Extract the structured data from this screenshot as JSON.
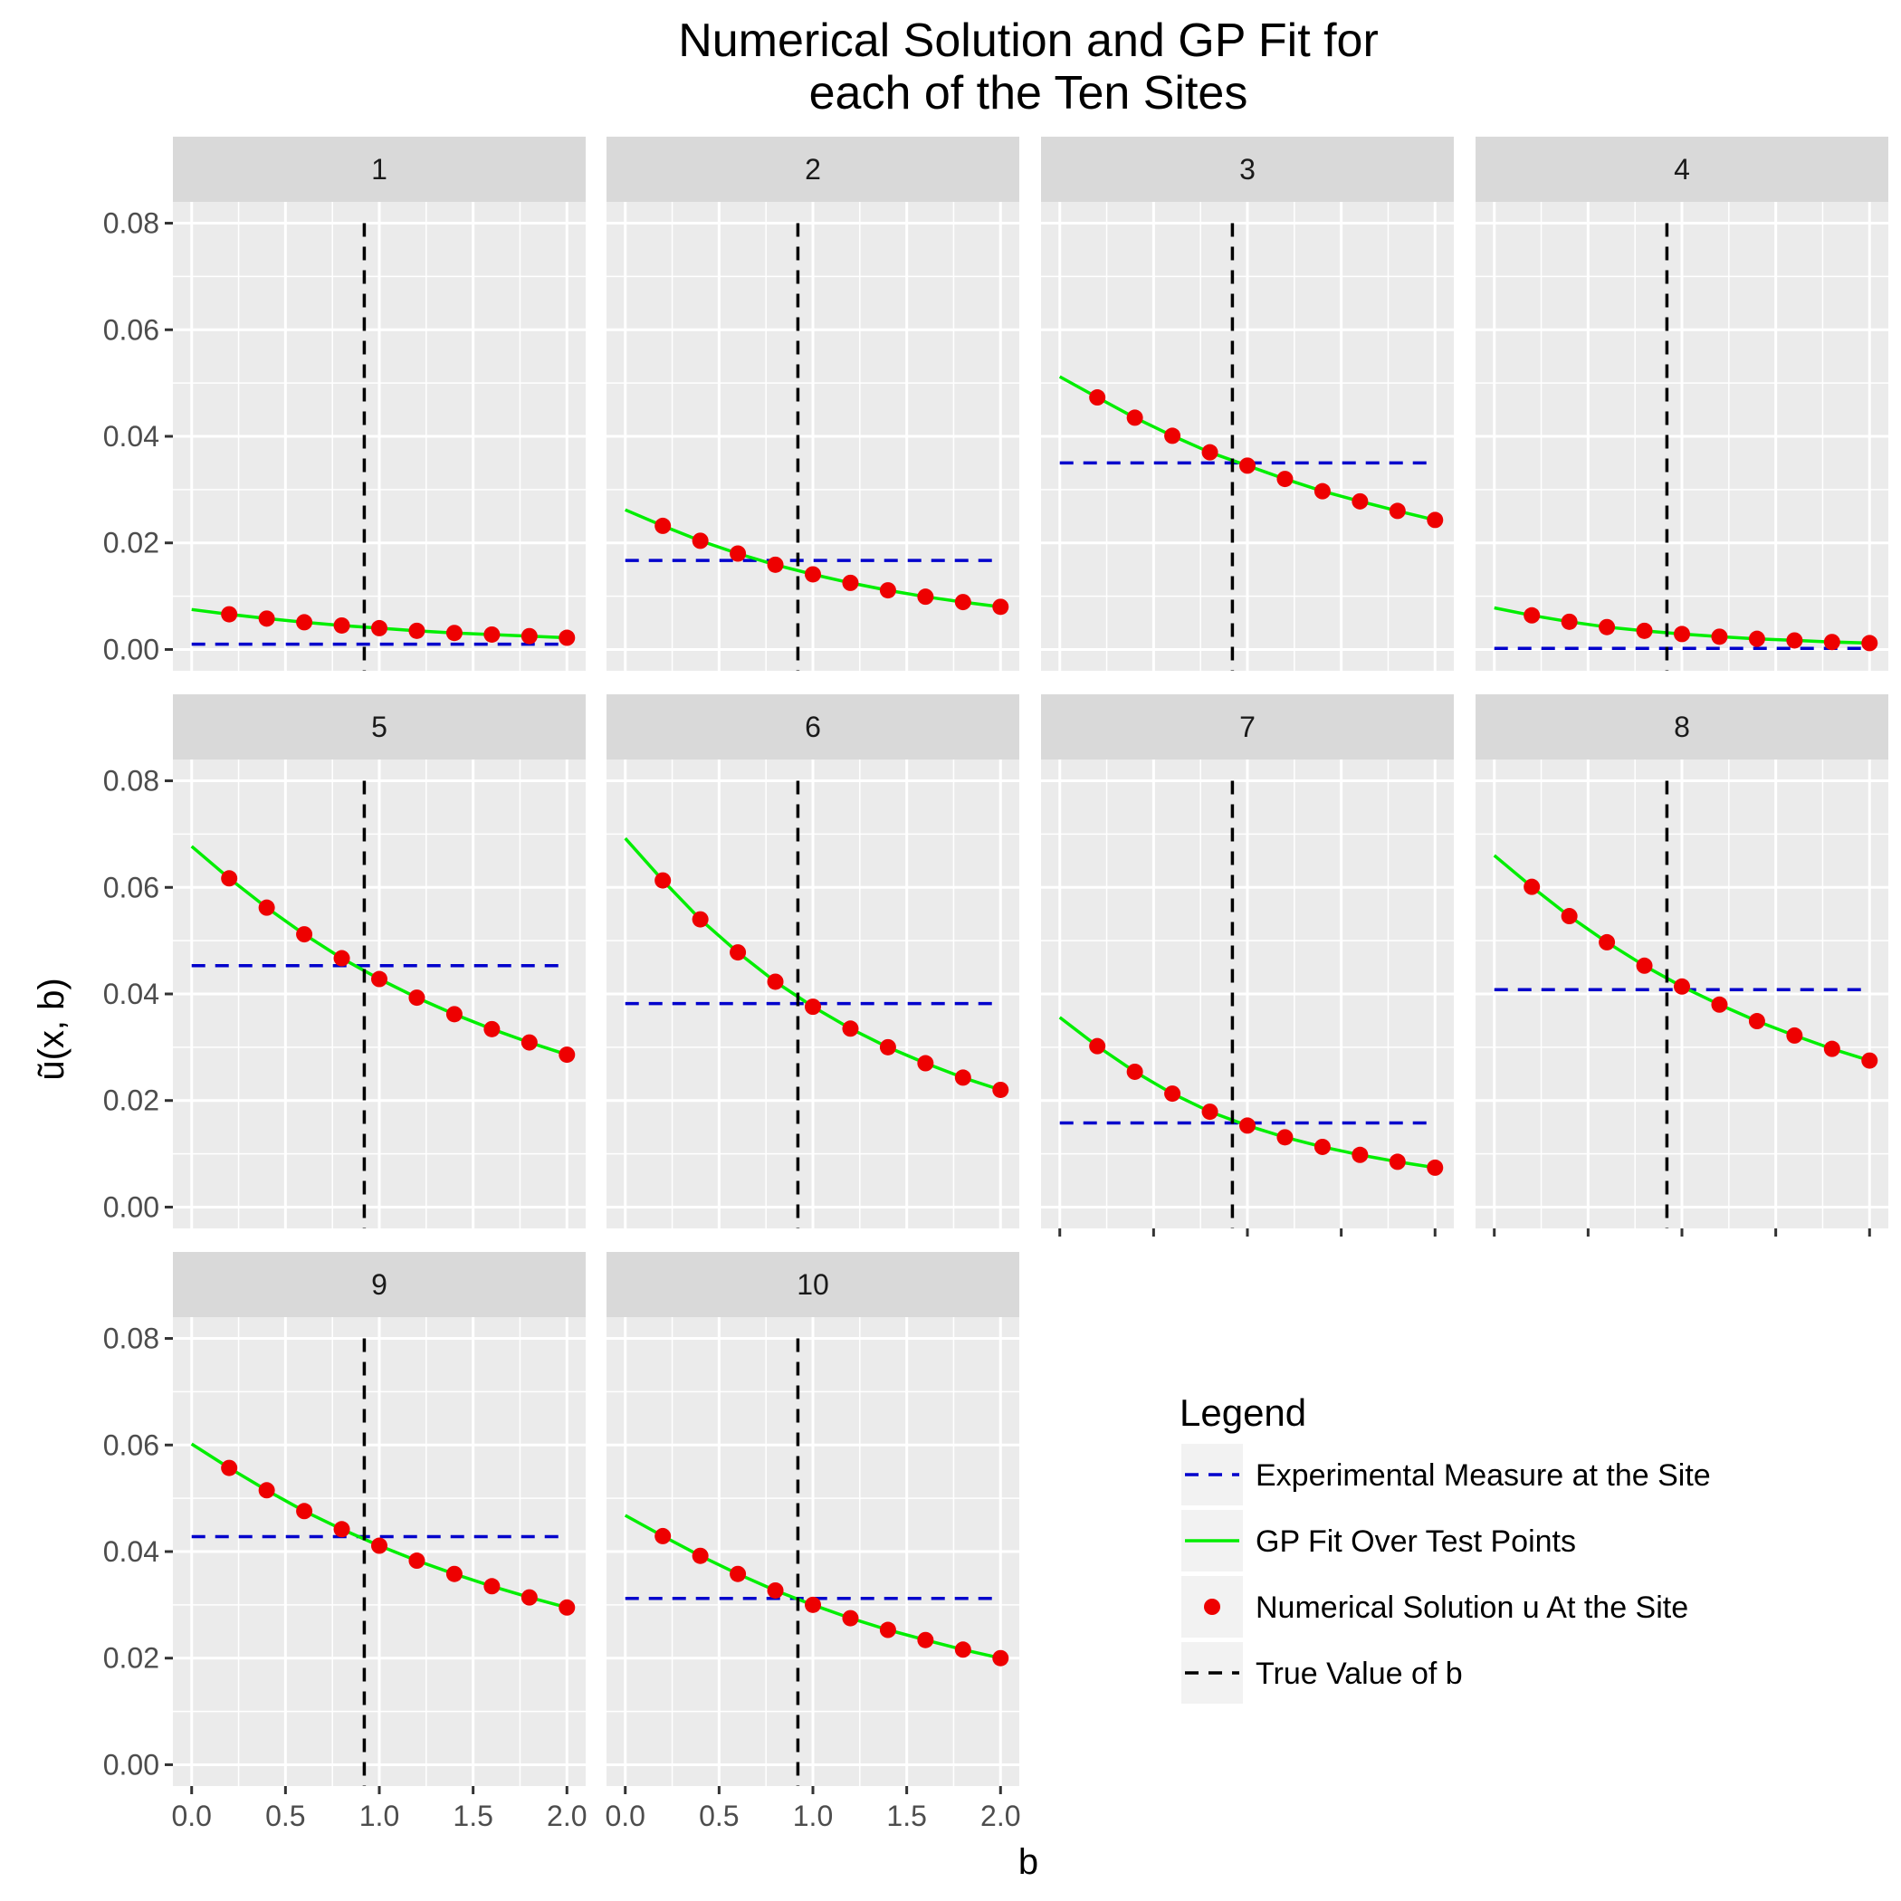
{
  "chart_data": {
    "type": "line",
    "title_lines": [
      "Numerical Solution and GP Fit for",
      "each of the Ten Sites"
    ],
    "xlabel": "b",
    "ylabel": "ũ(x, b)",
    "xlim": [
      -0.1,
      2.1
    ],
    "ylim": [
      -0.004,
      0.084
    ],
    "x_ticks": [
      "0.0",
      "0.5",
      "1.0",
      "1.5",
      "2.0"
    ],
    "x_tick_values": [
      0,
      0.5,
      1,
      1.5,
      2
    ],
    "y_ticks": [
      "0.00",
      "0.02",
      "0.04",
      "0.06",
      "0.08"
    ],
    "y_tick_values": [
      0,
      0.02,
      0.04,
      0.06,
      0.08
    ],
    "grid": true,
    "legend_placement": "bottom-right",
    "colors": {
      "experimental": "#0000cc",
      "gp_fit": "#00ee00",
      "numerical": "#ee0000",
      "true_b": "#000000"
    },
    "legend": {
      "title": "Legend",
      "entries": [
        {
          "key": "experimental",
          "label": "Experimental Measure at the Site"
        },
        {
          "key": "gp_fit",
          "label": "GP Fit Over Test Points"
        },
        {
          "key": "numerical",
          "label": "Numerical Solution u At the Site"
        },
        {
          "key": "true_b",
          "label": "True Value of b"
        }
      ]
    },
    "true_b": 0.92,
    "gp_x": [
      0,
      0.2,
      0.4,
      0.6,
      0.8,
      1.0,
      1.2,
      1.4,
      1.6,
      1.8,
      2.0
    ],
    "numerical_x": [
      0.2,
      0.4,
      0.6,
      0.8,
      1.0,
      1.2,
      1.4,
      1.6,
      1.8,
      2.0
    ],
    "panels": [
      {
        "label": "1",
        "experimental": 0.001,
        "gp_y": [
          0.0075,
          0.0066,
          0.0058,
          0.0051,
          0.0045,
          0.004,
          0.0035,
          0.0031,
          0.0028,
          0.0025,
          0.0022
        ],
        "numerical_y": [
          0.0066,
          0.0058,
          0.0051,
          0.0045,
          0.004,
          0.0035,
          0.0031,
          0.0028,
          0.0025,
          0.0022
        ]
      },
      {
        "label": "2",
        "experimental": 0.0167,
        "gp_y": [
          0.0262,
          0.0232,
          0.0204,
          0.018,
          0.0159,
          0.0141,
          0.0125,
          0.0111,
          0.0099,
          0.0089,
          0.008
        ],
        "numerical_y": [
          0.0232,
          0.0204,
          0.018,
          0.0159,
          0.0141,
          0.0125,
          0.0111,
          0.0099,
          0.0089,
          0.008
        ]
      },
      {
        "label": "3",
        "experimental": 0.035,
        "gp_y": [
          0.0512,
          0.0473,
          0.0435,
          0.0401,
          0.037,
          0.0345,
          0.032,
          0.0297,
          0.0278,
          0.026,
          0.0243
        ],
        "numerical_y": [
          0.0473,
          0.0435,
          0.0401,
          0.037,
          0.0345,
          0.032,
          0.0297,
          0.0278,
          0.026,
          0.0243
        ]
      },
      {
        "label": "4",
        "experimental": 0.0002,
        "gp_y": [
          0.0078,
          0.0064,
          0.0052,
          0.0042,
          0.0035,
          0.0029,
          0.0024,
          0.002,
          0.0017,
          0.0014,
          0.0012
        ],
        "numerical_y": [
          0.0064,
          0.0052,
          0.0042,
          0.0035,
          0.0029,
          0.0024,
          0.002,
          0.0017,
          0.0014,
          0.0012
        ]
      },
      {
        "label": "5",
        "experimental": 0.0453,
        "gp_y": [
          0.0677,
          0.0617,
          0.0562,
          0.0512,
          0.0467,
          0.0428,
          0.0393,
          0.0362,
          0.0334,
          0.0309,
          0.0286
        ],
        "numerical_y": [
          0.0617,
          0.0562,
          0.0512,
          0.0467,
          0.0428,
          0.0393,
          0.0362,
          0.0334,
          0.0309,
          0.0286
        ]
      },
      {
        "label": "6",
        "experimental": 0.0382,
        "gp_y": [
          0.0692,
          0.0613,
          0.054,
          0.0478,
          0.0423,
          0.0376,
          0.0335,
          0.03,
          0.027,
          0.0243,
          0.022
        ],
        "numerical_y": [
          0.0613,
          0.054,
          0.0478,
          0.0423,
          0.0376,
          0.0335,
          0.03,
          0.027,
          0.0243,
          0.022
        ]
      },
      {
        "label": "7",
        "experimental": 0.0158,
        "gp_y": [
          0.0356,
          0.0302,
          0.0254,
          0.0213,
          0.0179,
          0.0153,
          0.0131,
          0.0113,
          0.0098,
          0.0085,
          0.0074
        ],
        "numerical_y": [
          0.0302,
          0.0254,
          0.0213,
          0.0179,
          0.0153,
          0.0131,
          0.0113,
          0.0098,
          0.0085,
          0.0074
        ]
      },
      {
        "label": "8",
        "experimental": 0.0408,
        "gp_y": [
          0.066,
          0.0601,
          0.0546,
          0.0497,
          0.0453,
          0.0414,
          0.038,
          0.0349,
          0.0322,
          0.0297,
          0.0275
        ],
        "numerical_y": [
          0.0601,
          0.0546,
          0.0497,
          0.0453,
          0.0414,
          0.038,
          0.0349,
          0.0322,
          0.0297,
          0.0275
        ]
      },
      {
        "label": "9",
        "experimental": 0.0428,
        "gp_y": [
          0.0602,
          0.0557,
          0.0515,
          0.0476,
          0.0442,
          0.0411,
          0.0383,
          0.0358,
          0.0335,
          0.0314,
          0.0295
        ],
        "numerical_y": [
          0.0557,
          0.0515,
          0.0476,
          0.0442,
          0.0411,
          0.0383,
          0.0358,
          0.0335,
          0.0314,
          0.0295
        ]
      },
      {
        "label": "10",
        "experimental": 0.0312,
        "gp_y": [
          0.0468,
          0.0429,
          0.0392,
          0.0358,
          0.0327,
          0.03,
          0.0275,
          0.0253,
          0.0234,
          0.0216,
          0.02
        ],
        "numerical_y": [
          0.0429,
          0.0392,
          0.0358,
          0.0327,
          0.03,
          0.0275,
          0.0253,
          0.0234,
          0.0216,
          0.02
        ]
      }
    ]
  }
}
